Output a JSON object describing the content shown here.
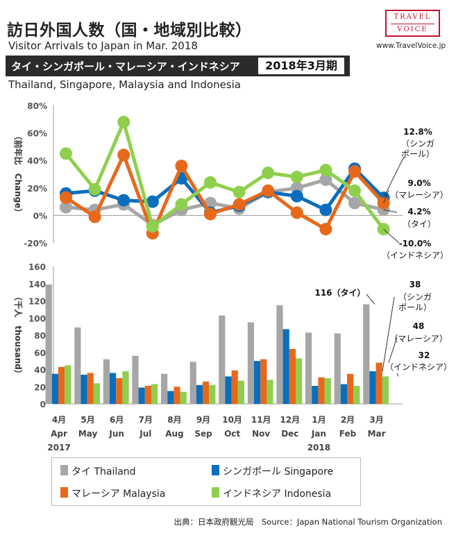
{
  "header": {
    "title_jp": "訪日外国人数（国・地域別比較）",
    "title_en": "Visitor Arrivals to Japan in Mar. 2018",
    "subtitle_jp": "タイ・シンガポール・マレーシア・インドネシア",
    "period": "2018年3月期",
    "subtitle_en": "Thailand, Singapore, Malaysia and Indonesia"
  },
  "logo": {
    "line1": "TRAVEL",
    "line2": "VOICE"
  },
  "site_url": "www.TravelVoice.jp",
  "colors": {
    "thailand": "#a6a6a6",
    "singapore": "#0a6ebd",
    "malaysia": "#e8681a",
    "indonesia": "#8fcf4e"
  },
  "chart_data": [
    {
      "type": "line",
      "title": "Change",
      "ylabel": "（前年比　Change）",
      "ylim": [
        -20,
        80
      ],
      "yticks": [
        "80%",
        "60%",
        "40%",
        "20%",
        "0%",
        "-20%"
      ],
      "categories": [
        "4月",
        "5月",
        "6月",
        "7月",
        "8月",
        "9月",
        "10月",
        "11月",
        "12月",
        "1月",
        "2月",
        "3月"
      ],
      "series": [
        {
          "name": "タイ Thailand",
          "key": "thailand",
          "values": [
            6,
            4,
            8,
            -7,
            4,
            9,
            5,
            17,
            20,
            26,
            9,
            4.2
          ]
        },
        {
          "name": "シンガポール Singapore",
          "key": "singapore",
          "values": [
            16,
            18,
            11,
            10,
            27,
            2,
            7,
            17,
            14,
            4,
            34,
            12.8
          ]
        },
        {
          "name": "マレーシア Malaysia",
          "key": "malaysia",
          "values": [
            13,
            -1,
            44,
            -13,
            36,
            1,
            8,
            18,
            2,
            -10,
            32,
            9.0
          ]
        },
        {
          "name": "インドネシア Indonesia",
          "key": "indonesia",
          "values": [
            45,
            19,
            68,
            -8,
            8,
            24,
            17,
            31,
            28,
            33,
            18,
            -10.0
          ]
        }
      ],
      "annotations": [
        {
          "value": "12.8%",
          "label": "（シンガ\nポール）"
        },
        {
          "value": "9.0%",
          "label": "（マレーシア）"
        },
        {
          "value": "4.2%",
          "label": "（タイ）"
        },
        {
          "value": "-10.0%",
          "label": "（インドネシア）"
        }
      ]
    },
    {
      "type": "bar",
      "ylabel": "（千人　thousand）",
      "ylim": [
        0,
        160
      ],
      "yticks": [
        "160",
        "140",
        "120",
        "100",
        "80",
        "60",
        "40",
        "20",
        "0"
      ],
      "categories": [
        "4月",
        "5月",
        "6月",
        "7月",
        "8月",
        "9月",
        "10月",
        "11月",
        "12月",
        "1月",
        "2月",
        "3月"
      ],
      "categories_en": [
        "Apr",
        "May",
        "Jun",
        "Jul",
        "Aug",
        "Sep",
        "Oct",
        "Nov",
        "Dec",
        "Jan",
        "Feb",
        "Mar"
      ],
      "year_labels": [
        {
          "index": 0,
          "text": "2017"
        },
        {
          "index": 9,
          "text": "2018"
        }
      ],
      "series": [
        {
          "name": "タイ Thailand",
          "key": "thailand",
          "values": [
            139,
            89,
            52,
            56,
            35,
            49,
            103,
            95,
            115,
            83,
            82,
            116
          ]
        },
        {
          "name": "シンガポール Singapore",
          "key": "singapore",
          "values": [
            35,
            34,
            36,
            19,
            15,
            22,
            32,
            50,
            87,
            21,
            23,
            38
          ]
        },
        {
          "name": "マレーシア Malaysia",
          "key": "malaysia",
          "values": [
            43,
            36,
            30,
            21,
            20,
            26,
            39,
            52,
            64,
            31,
            35,
            48
          ]
        },
        {
          "name": "インドネシア Indonesia",
          "key": "indonesia",
          "values": [
            45,
            24,
            38,
            23,
            14,
            22,
            27,
            28,
            53,
            30,
            21,
            32
          ]
        }
      ],
      "annotations": [
        {
          "value": "116",
          "label": "（タイ）"
        },
        {
          "value": "38",
          "label": "（シンガ\nポール）"
        },
        {
          "value": "48",
          "label": "（マレーシア）"
        },
        {
          "value": "32",
          "label": "（インドネシア）"
        }
      ]
    }
  ],
  "legend": [
    {
      "label": "タイ Thailand",
      "key": "thailand"
    },
    {
      "label": "シンガポール Singapore",
      "key": "singapore"
    },
    {
      "label": "マレーシア  Malaysia",
      "key": "malaysia"
    },
    {
      "label": "インドネシア Indonesia",
      "key": "indonesia"
    }
  ],
  "source": "出典：日本政府観光局　Source：Japan  National Tourism  Organization"
}
